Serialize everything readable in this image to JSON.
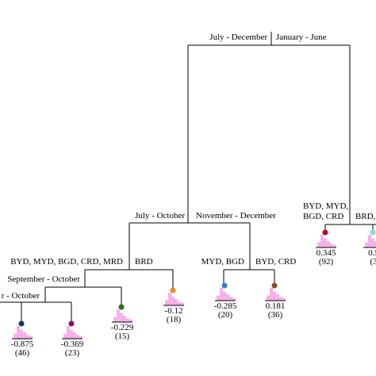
{
  "splits": [
    {
      "left": "July  - December",
      "right": "January  - June"
    },
    {
      "left": "July  - October",
      "right": "November  - December"
    },
    {
      "left": "BYD, MYD, BGD, CRD, MRD",
      "right": "BRD"
    },
    {
      "left": "MYD, BGD",
      "right": "BYD, CRD"
    },
    {
      "left": "September  - October"
    },
    {
      "left": "r  - October"
    },
    {
      "left": [
        "BYD, MYD,",
        "BGD, CRD"
      ],
      "right": "BRD,"
    }
  ],
  "leaves": [
    {
      "value": "-0.875",
      "count": "(46)"
    },
    {
      "value": "-0.369",
      "count": "(23)"
    },
    {
      "value": "-0.229",
      "count": "(15)"
    },
    {
      "value": "-0.12",
      "count": "(18)"
    },
    {
      "value": "-0.285",
      "count": "(20)"
    },
    {
      "value": "0.181",
      "count": "(36)"
    },
    {
      "value": "0.345",
      "count": "(92)"
    },
    {
      "value": "0.5",
      "count": "(3"
    }
  ]
}
